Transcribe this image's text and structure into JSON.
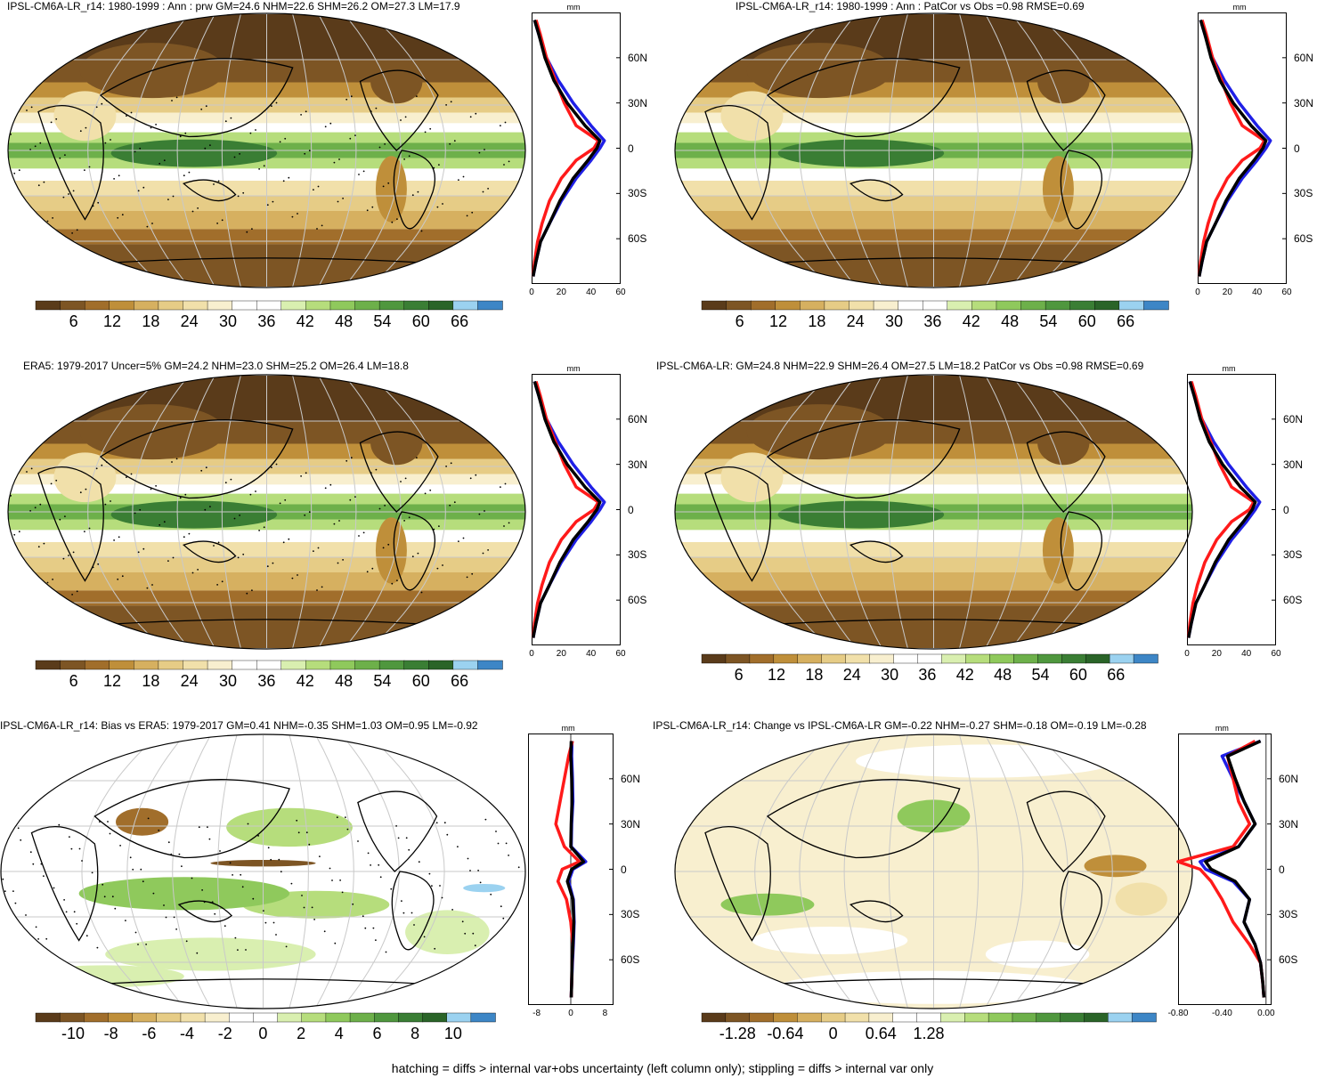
{
  "colors": {
    "brown_to_green": [
      "#5a3b1a",
      "#7d5524",
      "#a16e2b",
      "#bf8f3a",
      "#d6b060",
      "#e6cc86",
      "#f1e0aa",
      "#f8efcf",
      "#ffffff",
      "#ffffff",
      "#d9efb0",
      "#b6dd7c",
      "#8fc95c",
      "#6db04a",
      "#4f973e",
      "#3a7e34",
      "#2a6428",
      "#9bd2f0",
      "#3d86c6"
    ],
    "zonal_lines": {
      "blue": "#1f1fe6",
      "red": "#ff1a1a",
      "black": "#000000"
    },
    "graticule": "#c9c9c9"
  },
  "footnote": "hatching = diffs > internal var+obs uncertainty (left column only); stippling = diffs > internal var only",
  "panels": [
    {
      "id": "p1",
      "title": "IPSL-CM6A-LR_r14: 1980-1999 : Ann : prw GM=24.6 NHM=22.6 SHM=26.2 OM=27.3 LM=17.9",
      "field": "mean",
      "colorbar_ticks": [
        "6",
        "12",
        "18",
        "24",
        "30",
        "36",
        "42",
        "48",
        "54",
        "60",
        "66"
      ],
      "zonal_unit": "mm",
      "zonal_ticks": [
        "0",
        "20",
        "40",
        "60"
      ],
      "lat_ticks": [
        "60N",
        "30N",
        "0",
        "30S",
        "60S"
      ],
      "hatching": true
    },
    {
      "id": "p2",
      "title": "IPSL-CM6A-LR_r14: 1980-1999 : Ann : PatCor vs Obs =0.98 RMSE=0.69",
      "field": "mean",
      "colorbar_ticks": [
        "6",
        "12",
        "18",
        "24",
        "30",
        "36",
        "42",
        "48",
        "54",
        "60",
        "66"
      ],
      "zonal_unit": "mm",
      "zonal_ticks": [
        "0",
        "20",
        "40",
        "60"
      ],
      "lat_ticks": [
        "60N",
        "30N",
        "0",
        "30S",
        "60S"
      ],
      "hatching": false
    },
    {
      "id": "p3",
      "title": "ERA5: 1979-2017 Uncer=5% GM=24.2 NHM=23.0 SHM=25.2 OM=26.4 LM=18.8",
      "field": "mean",
      "colorbar_ticks": [
        "6",
        "12",
        "18",
        "24",
        "30",
        "36",
        "42",
        "48",
        "54",
        "60",
        "66"
      ],
      "zonal_unit": "mm",
      "zonal_ticks": [
        "0",
        "20",
        "40",
        "60"
      ],
      "lat_ticks": [
        "60N",
        "30N",
        "0",
        "30S",
        "60S"
      ],
      "hatching": true
    },
    {
      "id": "p4",
      "title": "IPSL-CM6A-LR: GM=24.8 NHM=22.9 SHM=26.4 OM=27.5 LM=18.2 PatCor vs Obs =0.98 RMSE=0.69",
      "field": "mean",
      "colorbar_ticks": [
        "6",
        "12",
        "18",
        "24",
        "30",
        "36",
        "42",
        "48",
        "54",
        "60",
        "66"
      ],
      "zonal_unit": "mm",
      "zonal_ticks": [
        "0",
        "20",
        "40",
        "60"
      ],
      "lat_ticks": [
        "60N",
        "30N",
        "0",
        "30S",
        "60S"
      ],
      "hatching": false
    },
    {
      "id": "p5",
      "title": "IPSL-CM6A-LR_r14: Bias vs ERA5: 1979-2017 GM=0.41 NHM=-0.35 SHM=1.03 OM=0.95 LM=-0.92",
      "field": "diff",
      "colorbar_ticks": [
        "-10",
        "-8",
        "-6",
        "-4",
        "-2",
        "0",
        "2",
        "4",
        "6",
        "8",
        "10"
      ],
      "zonal_unit": "mm",
      "zonal_ticks": [
        "-8",
        "0",
        "8"
      ],
      "lat_ticks": [
        "60N",
        "30N",
        "0",
        "30S",
        "60S"
      ],
      "hatching": true
    },
    {
      "id": "p6",
      "title": "IPSL-CM6A-LR_r14: Change vs IPSL-CM6A-LR GM=-0.22 NHM=-0.27 SHM=-0.18 OM=-0.19 LM=-0.28",
      "field": "change",
      "colorbar_ticks": [
        "-1.28",
        "-0.64",
        "0",
        "0.64",
        "1.28"
      ],
      "zonal_unit": "mm",
      "zonal_ticks": [
        "-0.80",
        "-0.40",
        "0.00"
      ],
      "lat_ticks": [
        "60N",
        "30N",
        "0",
        "30S",
        "60S"
      ],
      "hatching": false
    }
  ],
  "chart_data": [
    {
      "type": "line",
      "panel": "p1",
      "xlabel": "mm",
      "xlim": [
        0,
        60
      ],
      "ylim": [
        -90,
        90
      ],
      "series": [
        {
          "color": "blue",
          "x": [
            2,
            5,
            10,
            18,
            28,
            40,
            49,
            46,
            40,
            30,
            20,
            12,
            6,
            3,
            1
          ],
          "y": [
            85,
            75,
            60,
            45,
            30,
            15,
            5,
            0,
            -8,
            -20,
            -35,
            -50,
            -62,
            -75,
            -85
          ]
        },
        {
          "color": "black",
          "x": [
            2,
            5,
            9,
            15,
            24,
            36,
            46,
            44,
            38,
            28,
            19,
            12,
            6,
            3,
            1
          ],
          "y": [
            85,
            75,
            60,
            45,
            30,
            15,
            5,
            0,
            -8,
            -20,
            -35,
            -50,
            -62,
            -75,
            -85
          ]
        },
        {
          "color": "red",
          "x": [
            3,
            6,
            10,
            16,
            22,
            30,
            45,
            42,
            30,
            20,
            12,
            7,
            4,
            2,
            1
          ],
          "y": [
            85,
            75,
            60,
            45,
            30,
            15,
            5,
            0,
            -8,
            -20,
            -35,
            -50,
            -62,
            -75,
            -85
          ]
        }
      ]
    },
    {
      "type": "line",
      "panel": "p2",
      "xlabel": "mm",
      "xlim": [
        0,
        60
      ],
      "ylim": [
        -90,
        90
      ],
      "series": [
        {
          "color": "blue",
          "x": [
            2,
            5,
            10,
            18,
            28,
            40,
            49,
            46,
            40,
            30,
            20,
            12,
            6,
            3,
            1
          ],
          "y": [
            85,
            75,
            60,
            45,
            30,
            15,
            5,
            0,
            -8,
            -20,
            -35,
            -50,
            -62,
            -75,
            -85
          ]
        },
        {
          "color": "black",
          "x": [
            2,
            5,
            9,
            15,
            24,
            36,
            46,
            44,
            38,
            28,
            19,
            12,
            6,
            3,
            1
          ],
          "y": [
            85,
            75,
            60,
            45,
            30,
            15,
            5,
            0,
            -8,
            -20,
            -35,
            -50,
            -62,
            -75,
            -85
          ]
        },
        {
          "color": "red",
          "x": [
            3,
            6,
            10,
            16,
            22,
            30,
            45,
            42,
            30,
            20,
            12,
            7,
            4,
            2,
            1
          ],
          "y": [
            85,
            75,
            60,
            45,
            30,
            15,
            5,
            0,
            -8,
            -20,
            -35,
            -50,
            -62,
            -75,
            -85
          ]
        }
      ]
    },
    {
      "type": "line",
      "panel": "p3",
      "xlabel": "mm",
      "xlim": [
        0,
        60
      ],
      "ylim": [
        -90,
        90
      ],
      "series": [
        {
          "color": "blue",
          "x": [
            2,
            5,
            10,
            18,
            28,
            40,
            49,
            46,
            40,
            30,
            20,
            12,
            6,
            3,
            1
          ],
          "y": [
            85,
            75,
            60,
            45,
            30,
            15,
            5,
            0,
            -8,
            -20,
            -35,
            -50,
            -62,
            -75,
            -85
          ]
        },
        {
          "color": "black",
          "x": [
            2,
            5,
            9,
            15,
            24,
            36,
            46,
            44,
            38,
            28,
            19,
            12,
            6,
            3,
            1
          ],
          "y": [
            85,
            75,
            60,
            45,
            30,
            15,
            5,
            0,
            -8,
            -20,
            -35,
            -50,
            -62,
            -75,
            -85
          ]
        },
        {
          "color": "red",
          "x": [
            3,
            6,
            10,
            16,
            22,
            30,
            45,
            42,
            30,
            20,
            12,
            7,
            4,
            2,
            1
          ],
          "y": [
            85,
            75,
            60,
            45,
            30,
            15,
            5,
            0,
            -8,
            -20,
            -35,
            -50,
            -62,
            -75,
            -85
          ]
        }
      ]
    },
    {
      "type": "line",
      "panel": "p4",
      "xlabel": "mm",
      "xlim": [
        0,
        60
      ],
      "ylim": [
        -90,
        90
      ],
      "series": [
        {
          "color": "blue",
          "x": [
            2,
            5,
            10,
            18,
            28,
            40,
            49,
            46,
            40,
            30,
            20,
            12,
            6,
            3,
            1
          ],
          "y": [
            85,
            75,
            60,
            45,
            30,
            15,
            5,
            0,
            -8,
            -20,
            -35,
            -50,
            -62,
            -75,
            -85
          ]
        },
        {
          "color": "black",
          "x": [
            2,
            5,
            9,
            15,
            24,
            36,
            46,
            44,
            38,
            28,
            19,
            12,
            6,
            3,
            1
          ],
          "y": [
            85,
            75,
            60,
            45,
            30,
            15,
            5,
            0,
            -8,
            -20,
            -35,
            -50,
            -62,
            -75,
            -85
          ]
        },
        {
          "color": "red",
          "x": [
            3,
            6,
            10,
            16,
            22,
            30,
            45,
            42,
            30,
            20,
            12,
            7,
            4,
            2,
            1
          ],
          "y": [
            85,
            75,
            60,
            45,
            30,
            15,
            5,
            0,
            -8,
            -20,
            -35,
            -50,
            -62,
            -75,
            -85
          ]
        }
      ]
    },
    {
      "type": "line",
      "panel": "p5",
      "xlabel": "mm",
      "xlim": [
        -10,
        10
      ],
      "ylim": [
        -90,
        90
      ],
      "series": [
        {
          "color": "blue",
          "x": [
            0.3,
            0.2,
            0.4,
            0.5,
            0.2,
            0.1,
            3.5,
            0.5,
            -0.5,
            0.6,
            0.8,
            0.6,
            0.4,
            0.2,
            0.1
          ],
          "y": [
            85,
            75,
            60,
            45,
            30,
            15,
            5,
            0,
            -8,
            -20,
            -35,
            -50,
            -62,
            -75,
            -85
          ]
        },
        {
          "color": "black",
          "x": [
            0.1,
            0.0,
            0.2,
            0.3,
            0.1,
            0.0,
            3.0,
            0.2,
            -0.8,
            0.5,
            0.7,
            0.5,
            0.3,
            0.2,
            0.1
          ],
          "y": [
            85,
            75,
            60,
            45,
            30,
            15,
            5,
            0,
            -8,
            -20,
            -35,
            -50,
            -62,
            -75,
            -85
          ]
        },
        {
          "color": "red",
          "x": [
            0.4,
            -0.5,
            -1.5,
            -2.5,
            -3.5,
            -1.5,
            2.0,
            -2.0,
            -3.0,
            -1.0,
            0.0,
            0.5,
            0.3,
            0.2,
            0.1
          ],
          "y": [
            85,
            75,
            60,
            45,
            30,
            15,
            5,
            0,
            -8,
            -20,
            -35,
            -50,
            -62,
            -75,
            -85
          ]
        }
      ]
    },
    {
      "type": "line",
      "panel": "p6",
      "xlabel": "mm",
      "xlim": [
        -0.8,
        0.05
      ],
      "ylim": [
        -90,
        90
      ],
      "series": [
        {
          "color": "blue",
          "x": [
            -0.05,
            -0.4,
            -0.3,
            -0.2,
            -0.1,
            -0.25,
            -0.6,
            -0.55,
            -0.3,
            -0.15,
            -0.2,
            -0.1,
            -0.05,
            -0.03,
            -0.02
          ],
          "y": [
            85,
            75,
            60,
            45,
            30,
            15,
            5,
            0,
            -8,
            -20,
            -35,
            -50,
            -62,
            -75,
            -85
          ]
        },
        {
          "color": "black",
          "x": [
            -0.05,
            -0.35,
            -0.28,
            -0.2,
            -0.1,
            -0.25,
            -0.55,
            -0.5,
            -0.28,
            -0.15,
            -0.2,
            -0.1,
            -0.05,
            -0.03,
            -0.02
          ],
          "y": [
            85,
            75,
            60,
            45,
            30,
            15,
            5,
            0,
            -8,
            -20,
            -35,
            -50,
            -62,
            -75,
            -85
          ]
        },
        {
          "color": "red",
          "x": [
            -0.1,
            -0.35,
            -0.3,
            -0.25,
            -0.15,
            -0.3,
            -0.8,
            -0.6,
            -0.5,
            -0.4,
            -0.3,
            -0.15,
            -0.05,
            -0.03,
            -0.02
          ],
          "y": [
            85,
            75,
            60,
            45,
            30,
            15,
            5,
            0,
            -8,
            -20,
            -35,
            -50,
            -62,
            -75,
            -85
          ]
        }
      ]
    }
  ]
}
